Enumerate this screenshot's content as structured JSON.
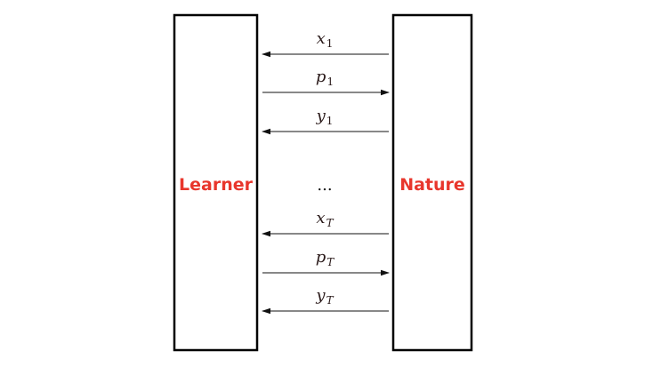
{
  "learner": {
    "label": "Learner"
  },
  "nature": {
    "label": "Nature"
  },
  "ellipsis": "...",
  "colors": {
    "box_label": "#e8362c",
    "box_stroke": "#000000",
    "arrow": "#111111"
  },
  "messages": [
    {
      "var": "x",
      "sub": "1",
      "direction": "nature-to-learner"
    },
    {
      "var": "p",
      "sub": "1",
      "direction": "learner-to-nature"
    },
    {
      "var": "y",
      "sub": "1",
      "direction": "nature-to-learner"
    },
    {
      "var": "x",
      "sub": "T",
      "direction": "nature-to-learner"
    },
    {
      "var": "p",
      "sub": "T",
      "direction": "learner-to-nature"
    },
    {
      "var": "y",
      "sub": "T",
      "direction": "nature-to-learner"
    }
  ]
}
